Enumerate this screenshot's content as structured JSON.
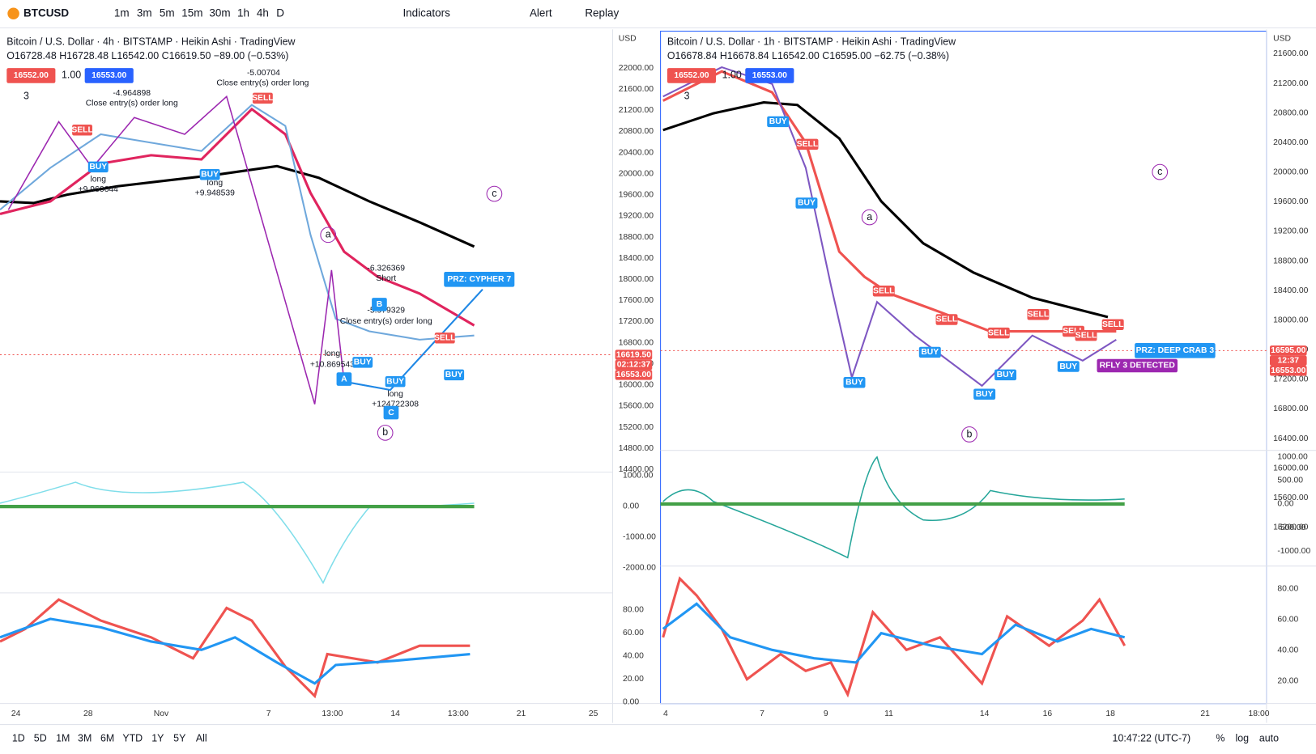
{
  "toolbar": {
    "symbol": "BTCUSD",
    "intervals": [
      "1m",
      "3m",
      "5m",
      "15m",
      "30m",
      "1h",
      "4h",
      "D"
    ],
    "indicators": "Indicators",
    "alert": "Alert",
    "replay": "Replay"
  },
  "left": {
    "title": "Bitcoin / U.S. Dollar · 4h · BITSTAMP · Heikin Ashi · TradingView",
    "ohlc": "O16728.48 H16728.48 L16542.00 C16619.50 −89.00 (−0.53%)",
    "sell": "16552.00",
    "qty": "1.00",
    "buy": "16553.00",
    "count": "3",
    "currency": "USD",
    "price_ticks": [
      "22000.00",
      "21600.00",
      "21200.00",
      "20800.00",
      "20400.00",
      "20000.00",
      "19600.00",
      "19200.00",
      "18800.00",
      "18400.00",
      "18000.00",
      "17600.00",
      "17200.00",
      "16800.00",
      "16400.00",
      "16000.00",
      "15600.00",
      "15200.00",
      "14800.00",
      "14400.00"
    ],
    "last": [
      "16619.50",
      "02:12:37",
      "16553.00"
    ],
    "osc_ticks": [
      "1000.00",
      "0.00",
      "-1000.00",
      "-2000.00"
    ],
    "rsi_ticks": [
      "80.00",
      "60.00",
      "40.00",
      "20.00",
      "0.00"
    ],
    "time_ticks": [
      "24",
      "28",
      "Nov",
      "7",
      "13:00",
      "14",
      "13:00",
      "21",
      "25"
    ],
    "notes": [
      "-5.00704",
      "Close entry(s) order long",
      "-4.964898",
      "Close entry(s) order long",
      "long",
      "+9.960644",
      "long",
      "+9.948539",
      "-6.326369",
      "Short",
      "-5.979329",
      "Close entry(s) order long",
      "long",
      "+10.869543",
      "long",
      "+124722308",
      "PRZ: CYPHER 7"
    ],
    "signals": [
      "SELL",
      "BUY",
      "BUY",
      "SELL",
      "BUY",
      "BUY",
      "SELL",
      "BUY"
    ],
    "waves": [
      "a",
      "b",
      "c"
    ],
    "points": [
      "A",
      "B",
      "C"
    ]
  },
  "right": {
    "title": "Bitcoin / U.S. Dollar · 1h · BITSTAMP · Heikin Ashi · TradingView",
    "ohlc": "O16678.84 H16678.84 L16542.00 C16595.00 −62.75 (−0.38%)",
    "sell": "16552.00",
    "qty": "1.00",
    "buy": "16553.00",
    "count": "3",
    "currency": "USD",
    "price_ticks": [
      "21600.00",
      "21200.00",
      "20800.00",
      "20400.00",
      "20000.00",
      "19600.00",
      "19200.00",
      "18800.00",
      "18400.00",
      "18000.00",
      "17600.00",
      "17200.00",
      "16800.00",
      "16400.00",
      "16000.00",
      "15600.00",
      "15200.00"
    ],
    "last": [
      "16595.00",
      "12:37",
      "16553.00"
    ],
    "osc_ticks": [
      "1000.00",
      "500.00",
      "0.00",
      "-500.00",
      "-1000.00"
    ],
    "rsi_ticks": [
      "80.00",
      "60.00",
      "40.00",
      "20.00"
    ],
    "time_ticks": [
      "4",
      "7",
      "9",
      "11",
      "14",
      "16",
      "18",
      "21",
      "18:00"
    ],
    "notes": [
      "PRZ: DEEP CRAB 3",
      "RFLY 3 DETECTED"
    ],
    "signals": [
      "BUY",
      "SELL",
      "BUY",
      "SELL",
      "SELL",
      "SELL",
      "BUY",
      "BUY",
      "SELL",
      "BUY",
      "SELL",
      "BUY",
      "SELL",
      "BUY",
      "SELL"
    ],
    "waves": [
      "a",
      "b",
      "c"
    ]
  },
  "bottom": {
    "ranges": [
      "1D",
      "5D",
      "1M",
      "3M",
      "6M",
      "YTD",
      "1Y",
      "5Y",
      "All"
    ],
    "clock": "10:47:22 (UTC-7)",
    "percent": "%",
    "log": "log",
    "auto": "auto"
  }
}
